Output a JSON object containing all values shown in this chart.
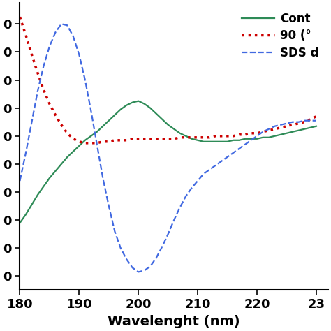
{
  "title": "",
  "xlabel": "Wavelenght (nm)",
  "ylabel": "",
  "xlim": [
    180,
    232
  ],
  "ylim_min": -0.9,
  "ylim_max": 1.15,
  "legend_labels": [
    "Cont",
    "90 (°",
    "SDS d"
  ],
  "legend_styles": [
    {
      "color": "#2e8b57",
      "linestyle": "-",
      "linewidth": 1.6
    },
    {
      "color": "#cc0000",
      "linestyle": ":",
      "linewidth": 2.5
    },
    {
      "color": "#4169e1",
      "linestyle": "--",
      "linewidth": 1.6
    }
  ],
  "control_x": [
    180,
    181,
    182,
    183,
    184,
    185,
    186,
    187,
    188,
    189,
    190,
    191,
    192,
    193,
    194,
    195,
    196,
    197,
    198,
    199,
    200,
    201,
    202,
    203,
    204,
    205,
    206,
    207,
    208,
    209,
    210,
    211,
    212,
    213,
    214,
    215,
    216,
    217,
    218,
    219,
    220,
    221,
    222,
    223,
    224,
    225,
    226,
    227,
    228,
    229,
    230
  ],
  "control_y": [
    -0.42,
    -0.36,
    -0.29,
    -0.22,
    -0.16,
    -0.1,
    -0.05,
    0.0,
    0.05,
    0.09,
    0.13,
    0.17,
    0.2,
    0.23,
    0.27,
    0.31,
    0.35,
    0.39,
    0.42,
    0.44,
    0.45,
    0.43,
    0.4,
    0.36,
    0.32,
    0.28,
    0.25,
    0.22,
    0.2,
    0.18,
    0.17,
    0.16,
    0.16,
    0.16,
    0.16,
    0.16,
    0.17,
    0.17,
    0.18,
    0.18,
    0.18,
    0.19,
    0.19,
    0.2,
    0.21,
    0.22,
    0.23,
    0.24,
    0.25,
    0.26,
    0.27
  ],
  "hot_x": [
    180,
    181,
    182,
    183,
    184,
    185,
    186,
    187,
    188,
    189,
    190,
    191,
    192,
    193,
    194,
    195,
    196,
    197,
    198,
    199,
    200,
    201,
    202,
    203,
    204,
    205,
    206,
    207,
    208,
    209,
    210,
    211,
    212,
    213,
    214,
    215,
    216,
    217,
    218,
    219,
    220,
    221,
    222,
    223,
    224,
    225,
    226,
    227,
    228,
    229,
    230
  ],
  "hot_y": [
    1.05,
    0.92,
    0.78,
    0.65,
    0.53,
    0.43,
    0.35,
    0.28,
    0.22,
    0.18,
    0.16,
    0.15,
    0.15,
    0.15,
    0.16,
    0.16,
    0.17,
    0.17,
    0.17,
    0.18,
    0.18,
    0.18,
    0.18,
    0.18,
    0.18,
    0.18,
    0.18,
    0.19,
    0.19,
    0.19,
    0.19,
    0.19,
    0.19,
    0.2,
    0.2,
    0.2,
    0.2,
    0.21,
    0.21,
    0.22,
    0.22,
    0.23,
    0.24,
    0.25,
    0.26,
    0.27,
    0.28,
    0.29,
    0.3,
    0.32,
    0.34
  ],
  "sds_x": [
    180,
    181,
    182,
    183,
    184,
    185,
    186,
    187,
    188,
    189,
    190,
    191,
    192,
    193,
    194,
    195,
    196,
    197,
    198,
    199,
    200,
    201,
    202,
    203,
    204,
    205,
    206,
    207,
    208,
    209,
    210,
    211,
    212,
    213,
    214,
    215,
    216,
    217,
    218,
    219,
    220,
    221,
    222,
    223,
    224,
    225,
    226,
    227,
    228,
    229,
    230
  ],
  "sds_y": [
    -0.12,
    0.08,
    0.3,
    0.52,
    0.7,
    0.84,
    0.94,
    1.0,
    0.99,
    0.91,
    0.78,
    0.6,
    0.38,
    0.14,
    -0.1,
    -0.3,
    -0.48,
    -0.6,
    -0.68,
    -0.74,
    -0.77,
    -0.76,
    -0.73,
    -0.67,
    -0.59,
    -0.5,
    -0.4,
    -0.31,
    -0.23,
    -0.17,
    -0.12,
    -0.07,
    -0.04,
    -0.01,
    0.02,
    0.05,
    0.08,
    0.11,
    0.14,
    0.17,
    0.2,
    0.23,
    0.25,
    0.27,
    0.28,
    0.29,
    0.3,
    0.3,
    0.31,
    0.31,
    0.31
  ],
  "background_color": "#ffffff",
  "tick_fontsize": 13,
  "label_fontsize": 14,
  "legend_fontsize": 12,
  "ytick_positions": [
    -0.8,
    -0.6,
    -0.4,
    -0.2,
    0.0,
    0.2,
    0.4,
    0.6,
    0.8,
    1.0
  ],
  "ytick_show_zero_only": true
}
